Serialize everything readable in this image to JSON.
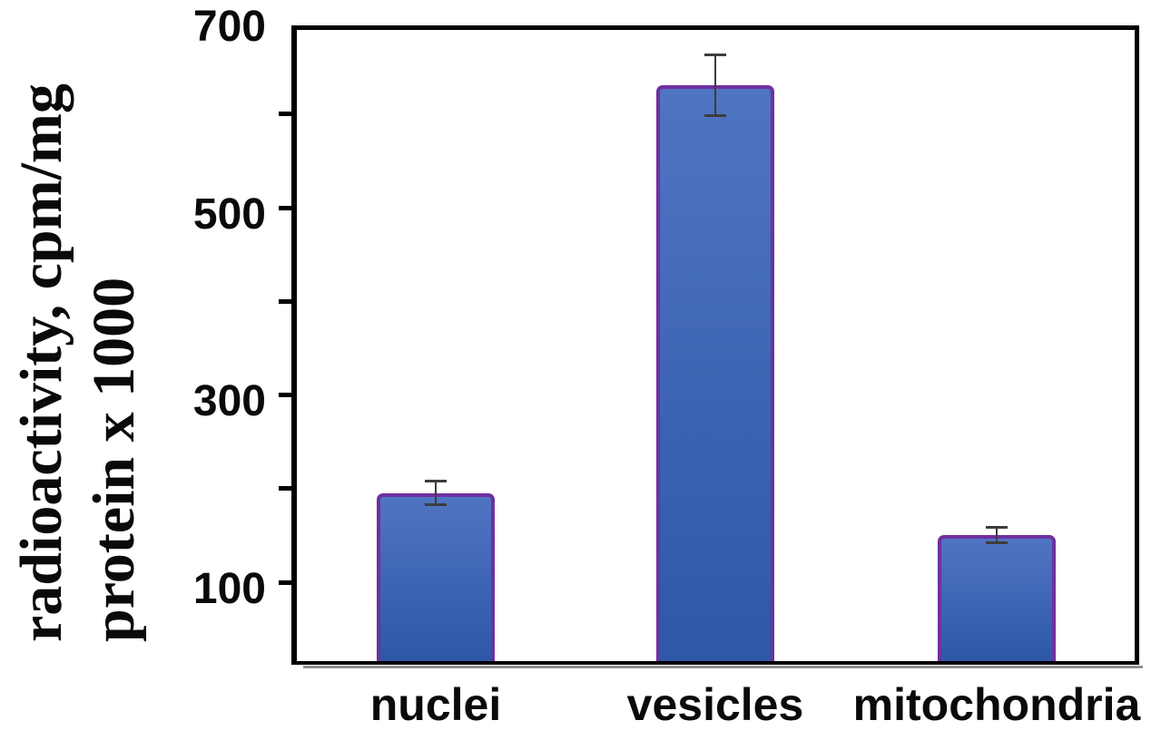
{
  "chart_data": {
    "type": "bar",
    "title": "",
    "categories": [
      "nuclei",
      "vesicles",
      "mitochondria"
    ],
    "values": [
      195,
      630,
      150
    ],
    "errors": [
      12,
      32,
      8
    ],
    "ylabel_lines": [
      "radioactivity, cpm/mg",
      "protein x 1000"
    ],
    "xlabel": "",
    "ylim": [
      0,
      700
    ],
    "ytick_labeled": [
      700,
      500,
      300,
      100
    ],
    "ytick_minor": [
      600,
      400,
      200
    ],
    "grid": false,
    "legend": false,
    "colors": {
      "bar_fill_top": "#4f74c2",
      "bar_fill_bottom": "#2e57a8",
      "bar_border": "#7030a0",
      "frame": "#000000",
      "error_bar": "#3d3d3d",
      "axis_shadow": "#8f8f8f",
      "text": "#0a0a0a",
      "background": "#ffffff"
    }
  }
}
